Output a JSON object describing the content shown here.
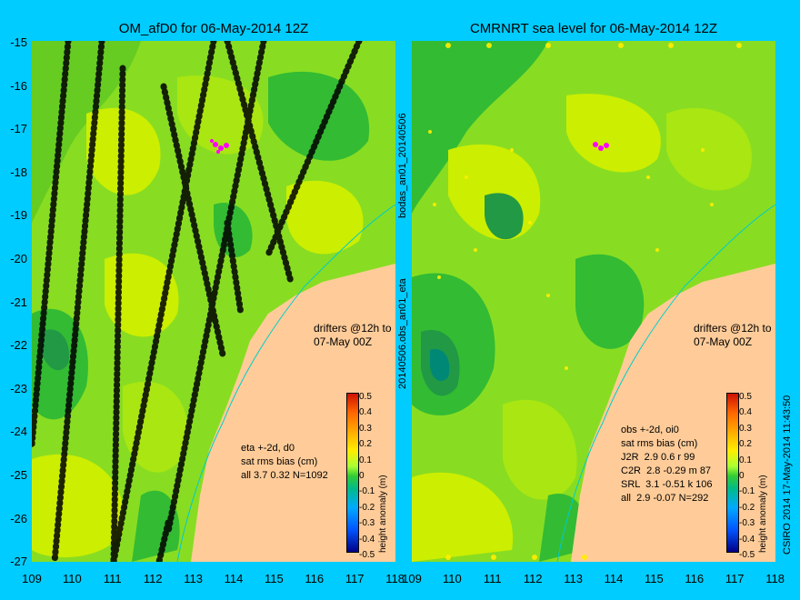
{
  "left_panel": {
    "title": "OM_afD0 for 06-May-2014 12Z",
    "stats_text": "eta +-2d, d0\nsat rms bias (cm)\nall 3.7 0.32 N=1092",
    "drifters_text": "drifters @12h to\n07-May 00Z"
  },
  "right_panel": {
    "title": "CMRNRT sea level  for 06-May-2014 12Z",
    "stats_text": "obs +-2d, oi0\nsat rms bias (cm)\nJ2R  2.9 0.6 r 99\nC2R  2.8 -0.29 m 87\nSRL  3.1 -0.51 k 106\nall  2.9 -0.07 N=292",
    "drifters_text": "drifters @12h to\n07-May 00Z"
  },
  "y_axis": {
    "labels": [
      "-15",
      "-16",
      "-17",
      "-18",
      "-19",
      "-20",
      "-21",
      "-22",
      "-23",
      "-24",
      "-25",
      "-26",
      "-27"
    ]
  },
  "x_axis": {
    "labels": [
      "109",
      "110",
      "111",
      "112",
      "113",
      "114",
      "115",
      "116",
      "117",
      "118"
    ]
  },
  "right_x_axis": {
    "labels": [
      "109",
      "110",
      "111",
      "112",
      "113",
      "114",
      "115",
      "116",
      "117",
      "118"
    ]
  },
  "colorbar": {
    "ticks": [
      "0.5",
      "0.4",
      "0.3",
      "0.2",
      "0.1",
      "0",
      "-0.1",
      "-0.2",
      "-0.3",
      "-0.4",
      "-0.5"
    ],
    "label": "height anomaly (m)"
  },
  "side_text": {
    "left_separator": "20140506.obs_an01_eta",
    "left_separator_top": "bodas_an01_20140506",
    "right_edge": "CSIRO 2014  17-May-2014 11:43:50"
  },
  "colors": {
    "background": "#00ccff",
    "land": "#ffcc99",
    "ocean_base": "#88dd22",
    "ocean_high": "#ccee00",
    "ocean_low": "#33bb33",
    "drifter": "#ff00ff"
  }
}
